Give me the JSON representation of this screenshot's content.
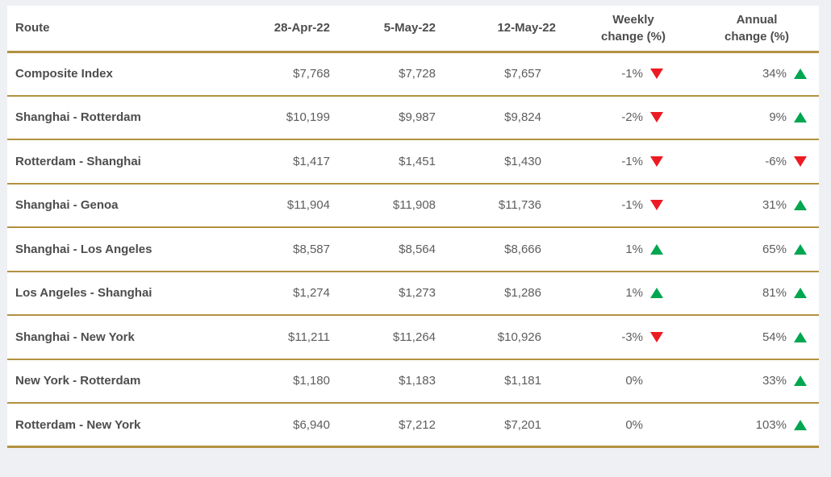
{
  "colors": {
    "border_gold": "#b2913f",
    "up_green": "#00a650",
    "down_red": "#ec1b23",
    "page_background": "#eef0f4",
    "header_text": "#4d4d4d",
    "value_text": "#5d5d5d"
  },
  "header": {
    "route": "Route",
    "date1": "28-Apr-22",
    "date2": "5-May-22",
    "date3": "12-May-22",
    "weekly_top": "Weekly",
    "weekly_bottom": "change (%)",
    "annual_top": "Annual",
    "annual_bottom": "change (%)"
  },
  "rows": [
    {
      "route": "Composite Index",
      "prices": [
        "$7,768",
        "$7,728",
        "$7,657"
      ],
      "weekly": {
        "value": "-1%",
        "direction": "down"
      },
      "annual": {
        "value": "34%",
        "direction": "up"
      }
    },
    {
      "route": "Shanghai - Rotterdam",
      "prices": [
        "$10,199",
        "$9,987",
        "$9,824"
      ],
      "weekly": {
        "value": "-2%",
        "direction": "down"
      },
      "annual": {
        "value": "9%",
        "direction": "up"
      }
    },
    {
      "route": "Rotterdam - Shanghai",
      "prices": [
        "$1,417",
        "$1,451",
        "$1,430"
      ],
      "weekly": {
        "value": "-1%",
        "direction": "down"
      },
      "annual": {
        "value": "-6%",
        "direction": "down"
      }
    },
    {
      "route": "Shanghai - Genoa",
      "prices": [
        "$11,904",
        "$11,908",
        "$11,736"
      ],
      "weekly": {
        "value": "-1%",
        "direction": "down"
      },
      "annual": {
        "value": "31%",
        "direction": "up"
      }
    },
    {
      "route": "Shanghai - Los Angeles",
      "prices": [
        "$8,587",
        "$8,564",
        "$8,666"
      ],
      "weekly": {
        "value": "1%",
        "direction": "up"
      },
      "annual": {
        "value": "65%",
        "direction": "up"
      }
    },
    {
      "route": "Los Angeles - Shanghai",
      "prices": [
        "$1,274",
        "$1,273",
        "$1,286"
      ],
      "weekly": {
        "value": "1%",
        "direction": "up"
      },
      "annual": {
        "value": "81%",
        "direction": "up"
      }
    },
    {
      "route": "Shanghai - New York",
      "prices": [
        "$11,211",
        "$11,264",
        "$10,926"
      ],
      "weekly": {
        "value": "-3%",
        "direction": "down"
      },
      "annual": {
        "value": "54%",
        "direction": "up"
      }
    },
    {
      "route": "New York - Rotterdam",
      "prices": [
        "$1,180",
        "$1,183",
        "$1,181"
      ],
      "weekly": {
        "value": "0%",
        "direction": "none"
      },
      "annual": {
        "value": "33%",
        "direction": "up"
      }
    },
    {
      "route": "Rotterdam - New York",
      "prices": [
        "$6,940",
        "$7,212",
        "$7,201"
      ],
      "weekly": {
        "value": "0%",
        "direction": "none"
      },
      "annual": {
        "value": "103%",
        "direction": "up"
      }
    }
  ],
  "chart_data": {
    "type": "table",
    "columns": [
      "Route",
      "28-Apr-22",
      "5-May-22",
      "12-May-22",
      "Weekly change (%)",
      "Annual change (%)"
    ],
    "rows": [
      [
        "Composite Index",
        7768,
        7728,
        7657,
        -1,
        34
      ],
      [
        "Shanghai - Rotterdam",
        10199,
        9987,
        9824,
        -2,
        9
      ],
      [
        "Rotterdam - Shanghai",
        1417,
        1451,
        1430,
        -1,
        -6
      ],
      [
        "Shanghai - Genoa",
        11904,
        11908,
        11736,
        -1,
        31
      ],
      [
        "Shanghai - Los Angeles",
        8587,
        8564,
        8666,
        1,
        65
      ],
      [
        "Los Angeles - Shanghai",
        1274,
        1273,
        1286,
        1,
        81
      ],
      [
        "Shanghai - New York",
        11211,
        11264,
        10926,
        -3,
        54
      ],
      [
        "New York - Rotterdam",
        1180,
        1183,
        1181,
        0,
        33
      ],
      [
        "Rotterdam - New York",
        6940,
        7212,
        7201,
        0,
        103
      ]
    ]
  }
}
